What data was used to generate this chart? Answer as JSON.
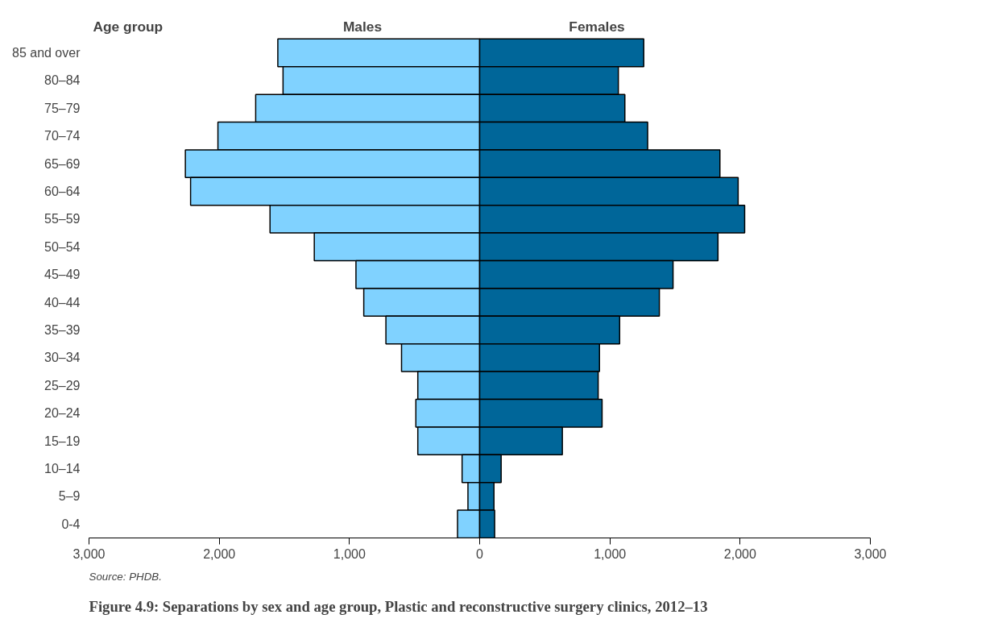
{
  "chart_data": {
    "type": "bar",
    "orientation": "horizontal",
    "title": "Figure 4.9: Separations by sex and age group, Plastic and reconstructive surgery clinics, 2012–13",
    "ylabel": "Age group",
    "categories": [
      "85 and over",
      "80–84",
      "75–79",
      "70–74",
      "65–69",
      "60–64",
      "55–59",
      "50–54",
      "45–49",
      "40–44",
      "35–39",
      "30–34",
      "25–29",
      "20–24",
      "15–19",
      "10–14",
      "5–9",
      "0-4"
    ],
    "series": [
      {
        "name": "Males",
        "color": "#80d2ff",
        "values": [
          -1550,
          -1510,
          -1720,
          -2010,
          -2260,
          -2220,
          -1610,
          -1270,
          -950,
          -890,
          -720,
          -600,
          -475,
          -490,
          -475,
          -135,
          -90,
          -170
        ]
      },
      {
        "name": "Females",
        "color": "#006699",
        "values": [
          1260,
          1065,
          1115,
          1290,
          1845,
          1985,
          2035,
          1830,
          1485,
          1380,
          1075,
          920,
          910,
          940,
          635,
          165,
          110,
          115
        ]
      }
    ],
    "xlim": [
      -3000,
      3000
    ],
    "xticks": [
      {
        "value": -3000,
        "label": "3,000"
      },
      {
        "value": -2000,
        "label": "2,000"
      },
      {
        "value": -1000,
        "label": "1,000"
      },
      0,
      {
        "value": 1000,
        "label": "1,000"
      },
      {
        "value": 2000,
        "label": "2,000"
      },
      {
        "value": 3000,
        "label": "3,000"
      }
    ],
    "grid": false,
    "stacked": true,
    "legend": false,
    "annotations": [
      "Source: PHDB."
    ]
  }
}
